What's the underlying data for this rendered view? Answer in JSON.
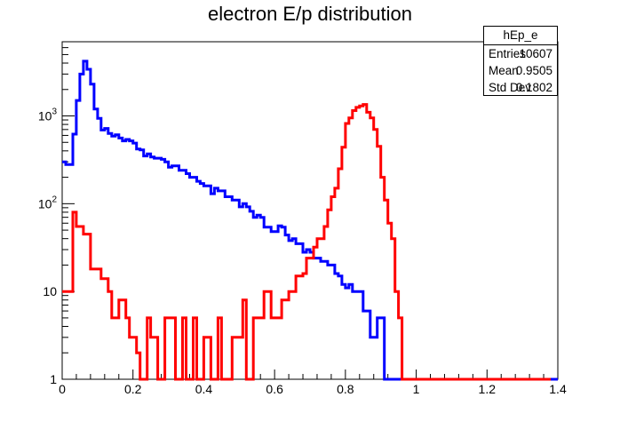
{
  "chart_data": {
    "type": "histogram",
    "title": "electron E/p distribution",
    "xlabel": "",
    "ylabel": "",
    "xlim": [
      0,
      1.4
    ],
    "ylim": [
      1,
      7000
    ],
    "yscale": "log",
    "grid": false,
    "x_ticks": [
      "0",
      "0.2",
      "0.4",
      "0.6",
      "0.8",
      "1",
      "1.2",
      "1.4"
    ],
    "y_ticks": [
      {
        "value": 1,
        "base": "1",
        "exp": ""
      },
      {
        "value": 10,
        "base": "10",
        "exp": ""
      },
      {
        "value": 100,
        "base": "10",
        "exp": "2"
      },
      {
        "value": 1000,
        "base": "10",
        "exp": "3"
      }
    ],
    "stats_box": {
      "name": "hEp_e",
      "rows": [
        {
          "label": "Entries",
          "value": "10607"
        },
        {
          "label": "Mean",
          "value": "0.9505"
        },
        {
          "label": "Std Dev",
          "value": "0.1802"
        }
      ]
    },
    "bin_width": 0.01,
    "series": [
      {
        "color": "#0000ff",
        "values": [
          300,
          280,
          280,
          620,
          1500,
          3000,
          4200,
          3400,
          2300,
          1200,
          940,
          690,
          720,
          630,
          590,
          610,
          560,
          520,
          540,
          520,
          490,
          420,
          410,
          350,
          370,
          340,
          330,
          330,
          320,
          300,
          260,
          270,
          270,
          240,
          240,
          220,
          200,
          200,
          180,
          170,
          160,
          160,
          130,
          150,
          140,
          140,
          120,
          120,
          110,
          110,
          92,
          100,
          92,
          82,
          70,
          74,
          70,
          54,
          54,
          48,
          48,
          56,
          54,
          44,
          38,
          40,
          35,
          35,
          28,
          30,
          28,
          24,
          24,
          22,
          22,
          20,
          20,
          16,
          15,
          12,
          11,
          12,
          10,
          10,
          10,
          6,
          6,
          3,
          3,
          5,
          5,
          1,
          1,
          1,
          1,
          1,
          1,
          1,
          1,
          1,
          1,
          1,
          1,
          1,
          1,
          1,
          1,
          1,
          1,
          1,
          1,
          1,
          1,
          1,
          1,
          1,
          1,
          1,
          1,
          1,
          1,
          1,
          1,
          1,
          1,
          1,
          1,
          1,
          1,
          1,
          1,
          1,
          1,
          1,
          1,
          1,
          1,
          1,
          1,
          1
        ]
      },
      {
        "color": "#ff0000",
        "values": [
          10,
          10,
          10,
          80,
          55,
          55,
          45,
          45,
          18,
          18,
          18,
          14,
          14,
          10,
          5,
          5,
          8,
          8,
          5,
          3,
          3,
          2,
          1,
          1,
          5,
          3,
          3,
          1,
          1,
          5,
          5,
          5,
          1,
          1,
          5,
          1,
          1,
          5,
          1,
          1,
          3,
          3,
          1,
          1,
          5,
          1,
          1,
          1,
          3,
          3,
          3,
          8,
          1,
          1,
          5,
          5,
          5,
          10,
          10,
          5,
          5,
          5,
          8,
          8,
          10,
          10,
          15,
          15,
          16,
          24,
          24,
          32,
          40,
          40,
          55,
          85,
          120,
          150,
          250,
          440,
          820,
          950,
          1150,
          1250,
          1300,
          1350,
          1100,
          950,
          700,
          450,
          200,
          110,
          60,
          40,
          10,
          5,
          1,
          1,
          1,
          1,
          1,
          1,
          1,
          1,
          1,
          1,
          1,
          1,
          1,
          1,
          1,
          1,
          1,
          1,
          1,
          1,
          1,
          1,
          1,
          1,
          1,
          1,
          1,
          1,
          1,
          1,
          1,
          1,
          1,
          1,
          1,
          1,
          1,
          1,
          1,
          1,
          1,
          1
        ]
      }
    ]
  }
}
